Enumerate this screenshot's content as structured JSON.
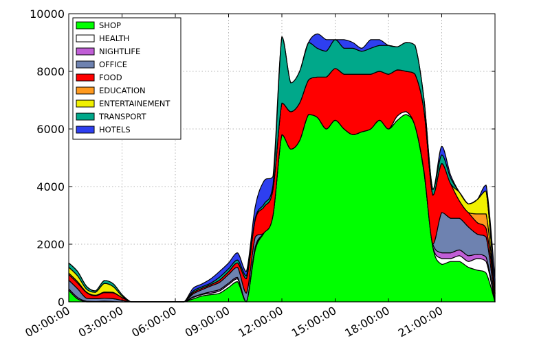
{
  "chart_data": {
    "type": "area",
    "stacked": true,
    "title": "",
    "xlabel": "",
    "ylabel": "",
    "ylim": [
      0,
      10000
    ],
    "xlim": [
      "00:00:00",
      "24:00:00"
    ],
    "grid": true,
    "legend_position": "top-left",
    "y_ticks": [
      0,
      2000,
      4000,
      6000,
      8000,
      10000
    ],
    "y_tick_labels": [
      "0",
      "2000",
      "4000",
      "6000",
      "8000",
      "10000"
    ],
    "x_ticks": [
      "00:00:00",
      "03:00:00",
      "06:00:00",
      "09:00:00",
      "12:00:00",
      "15:00:00",
      "18:00:00",
      "21:00:00"
    ],
    "x": [
      0,
      0.5,
      1,
      1.5,
      2,
      2.5,
      3,
      3.5,
      4,
      4.5,
      5,
      5.5,
      6,
      6.5,
      7,
      7.5,
      8,
      8.5,
      9,
      9.5,
      10,
      10.5,
      11,
      11.5,
      12,
      12.5,
      13,
      13.5,
      14,
      14.5,
      15,
      15.5,
      16,
      16.5,
      17,
      17.5,
      18,
      18.5,
      19,
      19.5,
      20,
      20.5,
      21,
      21.5,
      22,
      22.5,
      23,
      23.5,
      24
    ],
    "series": [
      {
        "name": "SHOP",
        "color": "#00ff00",
        "values": [
          400,
          100,
          0,
          0,
          0,
          0,
          0,
          0,
          0,
          0,
          0,
          0,
          0,
          0,
          100,
          200,
          250,
          300,
          500,
          700,
          0,
          1800,
          2400,
          3000,
          5800,
          5300,
          5600,
          6500,
          6400,
          6000,
          6300,
          6000,
          5800,
          5900,
          6000,
          6300,
          6000,
          6300,
          6500,
          6100,
          4500,
          1900,
          1300,
          1400,
          1400,
          1200,
          1100,
          1000,
          0
        ]
      },
      {
        "name": "HEALTH",
        "color": "#ffffff",
        "values": [
          0,
          0,
          0,
          0,
          0,
          0,
          0,
          0,
          0,
          0,
          0,
          0,
          0,
          0,
          50,
          50,
          50,
          80,
          100,
          100,
          0,
          50,
          0,
          0,
          0,
          0,
          0,
          0,
          0,
          0,
          0,
          0,
          0,
          0,
          0,
          0,
          0,
          150,
          100,
          0,
          0,
          0,
          200,
          100,
          200,
          200,
          400,
          400,
          0
        ]
      },
      {
        "name": "NIGHTLIFE",
        "color": "#c05ed6",
        "values": [
          50,
          50,
          20,
          10,
          20,
          10,
          0,
          0,
          0,
          0,
          0,
          0,
          0,
          0,
          20,
          20,
          50,
          50,
          50,
          50,
          0,
          50,
          0,
          0,
          0,
          0,
          0,
          0,
          0,
          0,
          0,
          0,
          0,
          0,
          0,
          0,
          0,
          0,
          0,
          0,
          50,
          100,
          200,
          200,
          200,
          200,
          150,
          150,
          0
        ]
      },
      {
        "name": "OFFICE",
        "color": "#6e82b0",
        "values": [
          300,
          300,
          100,
          100,
          100,
          100,
          50,
          0,
          0,
          0,
          0,
          0,
          0,
          0,
          100,
          150,
          200,
          250,
          300,
          350,
          300,
          350,
          0,
          0,
          0,
          0,
          0,
          0,
          0,
          0,
          0,
          0,
          0,
          0,
          0,
          0,
          0,
          0,
          0,
          0,
          0,
          0,
          1400,
          1200,
          1100,
          1000,
          700,
          700,
          0
        ]
      },
      {
        "name": "FOOD",
        "color": "#ff0000",
        "values": [
          200,
          200,
          200,
          100,
          200,
          200,
          100,
          0,
          0,
          0,
          0,
          0,
          0,
          0,
          50,
          50,
          50,
          80,
          100,
          150,
          500,
          600,
          900,
          900,
          1100,
          1300,
          1300,
          1200,
          1400,
          1800,
          1800,
          1900,
          2100,
          2000,
          1900,
          1700,
          1900,
          1600,
          1400,
          1800,
          2100,
          1700,
          1700,
          1200,
          600,
          500,
          400,
          300,
          300
        ]
      },
      {
        "name": "EDUCATION",
        "color": "#ff9a1f",
        "values": [
          50,
          50,
          20,
          20,
          20,
          20,
          0,
          0,
          0,
          0,
          0,
          0,
          0,
          0,
          0,
          0,
          0,
          0,
          0,
          0,
          0,
          0,
          0,
          0,
          0,
          0,
          0,
          0,
          0,
          0,
          0,
          0,
          0,
          0,
          0,
          0,
          0,
          0,
          0,
          0,
          0,
          0,
          0,
          0,
          0,
          0,
          300,
          500,
          0
        ]
      },
      {
        "name": "ENTERTAINEMENT",
        "color": "#f0f000",
        "values": [
          200,
          200,
          100,
          100,
          300,
          200,
          50,
          0,
          0,
          0,
          0,
          0,
          0,
          0,
          0,
          0,
          0,
          0,
          0,
          0,
          0,
          0,
          0,
          0,
          0,
          0,
          0,
          0,
          0,
          0,
          0,
          0,
          0,
          0,
          0,
          0,
          0,
          0,
          0,
          0,
          0,
          0,
          0,
          0,
          300,
          300,
          500,
          800,
          0
        ]
      },
      {
        "name": "TRANSPORT",
        "color": "#00a88a",
        "values": [
          150,
          150,
          100,
          50,
          100,
          100,
          50,
          0,
          0,
          0,
          0,
          0,
          0,
          0,
          50,
          50,
          50,
          100,
          100,
          100,
          100,
          50,
          100,
          150,
          2300,
          1000,
          1100,
          1300,
          1000,
          900,
          1000,
          900,
          900,
          800,
          900,
          900,
          1000,
          800,
          1000,
          1000,
          400,
          200,
          300,
          200,
          0,
          0,
          0,
          0,
          0
        ]
      },
      {
        "name": "HOTELS",
        "color": "#2e3ff0",
        "values": [
          0,
          0,
          0,
          0,
          0,
          0,
          0,
          0,
          0,
          0,
          0,
          0,
          0,
          0,
          100,
          100,
          150,
          200,
          200,
          250,
          150,
          400,
          800,
          300,
          0,
          0,
          0,
          0,
          500,
          400,
          0,
          300,
          200,
          100,
          300,
          200,
          0,
          0,
          0,
          0,
          0,
          0,
          300,
          100,
          0,
          0,
          0,
          200,
          500
        ]
      }
    ]
  }
}
